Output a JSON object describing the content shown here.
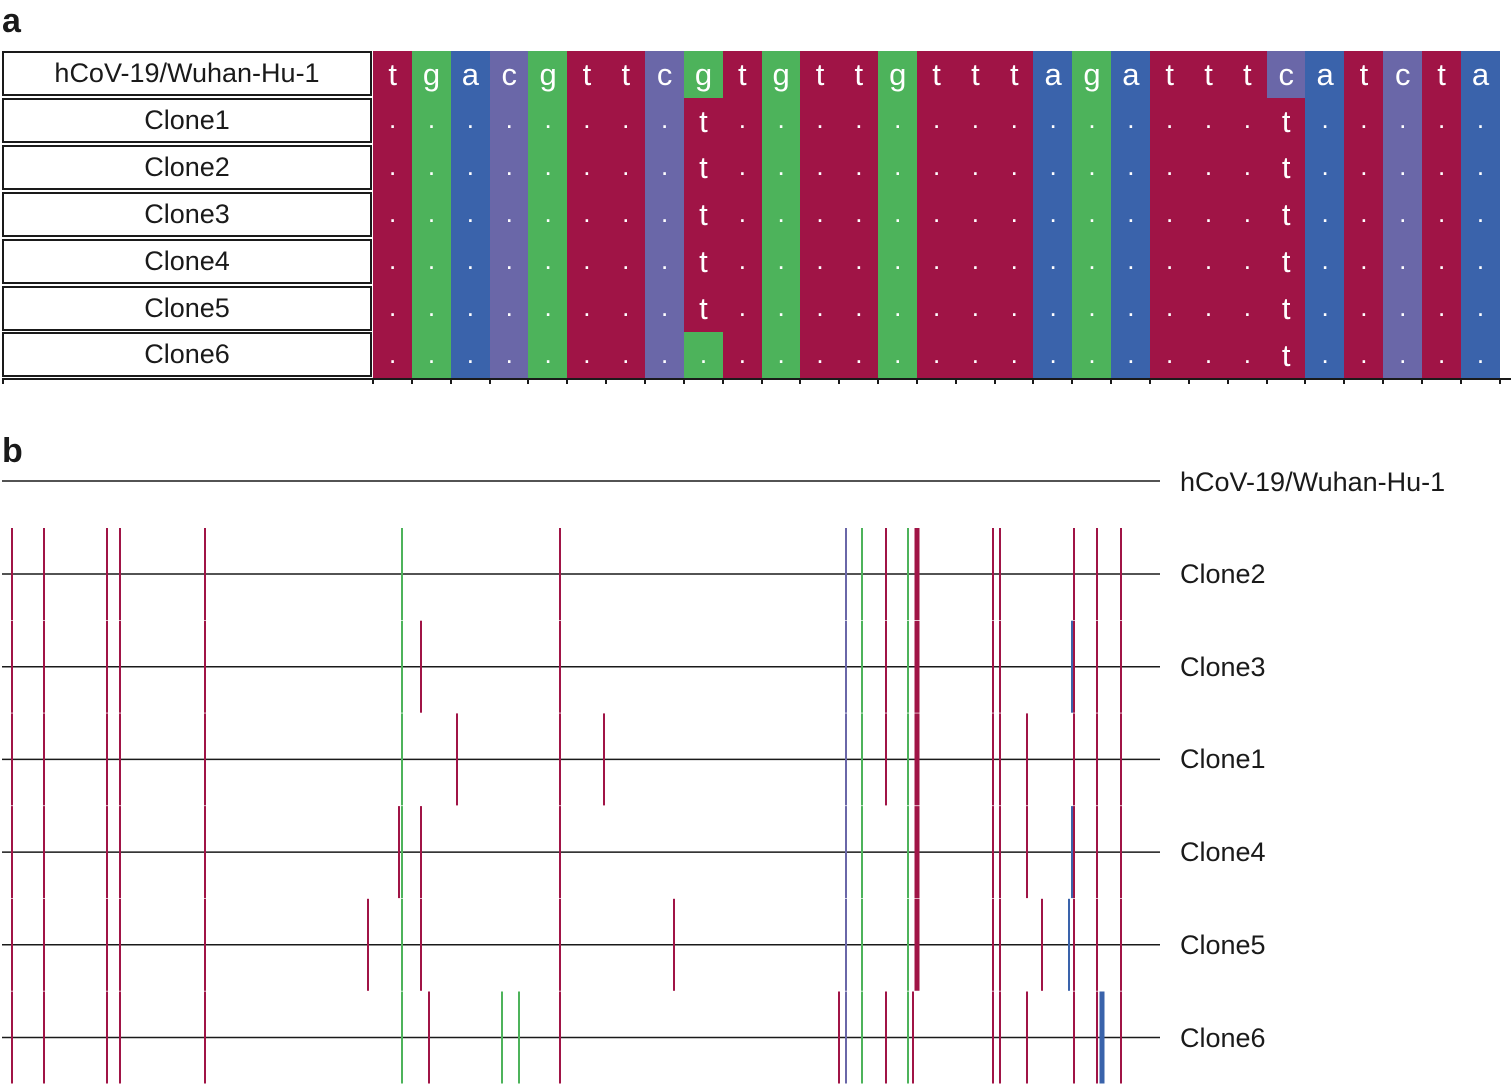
{
  "panel_a": {
    "label": "a",
    "reference": {
      "name": "hCoV-19/Wuhan-Hu-1",
      "sequence": [
        "t",
        "g",
        "a",
        "c",
        "g",
        "t",
        "t",
        "c",
        "g",
        "t",
        "g",
        "t",
        "t",
        "g",
        "t",
        "t",
        "t",
        "a",
        "g",
        "a",
        "t",
        "t",
        "t",
        "c",
        "a",
        "t",
        "c",
        "t",
        "a"
      ]
    },
    "clones": [
      {
        "name": "Clone1",
        "seq": [
          ".",
          ".",
          ".",
          ".",
          ".",
          ".",
          ".",
          ".",
          "t",
          ".",
          ".",
          ".",
          ".",
          ".",
          ".",
          ".",
          ".",
          ".",
          ".",
          ".",
          ".",
          ".",
          ".",
          "t",
          ".",
          ".",
          ".",
          ".",
          "."
        ]
      },
      {
        "name": "Clone2",
        "seq": [
          ".",
          ".",
          ".",
          ".",
          ".",
          ".",
          ".",
          ".",
          "t",
          ".",
          ".",
          ".",
          ".",
          ".",
          ".",
          ".",
          ".",
          ".",
          ".",
          ".",
          ".",
          ".",
          ".",
          "t",
          ".",
          ".",
          ".",
          ".",
          "."
        ]
      },
      {
        "name": "Clone3",
        "seq": [
          ".",
          ".",
          ".",
          ".",
          ".",
          ".",
          ".",
          ".",
          "t",
          ".",
          ".",
          ".",
          ".",
          ".",
          ".",
          ".",
          ".",
          ".",
          ".",
          ".",
          ".",
          ".",
          ".",
          "t",
          ".",
          ".",
          ".",
          ".",
          "."
        ]
      },
      {
        "name": "Clone4",
        "seq": [
          ".",
          ".",
          ".",
          ".",
          ".",
          ".",
          ".",
          ".",
          "t",
          ".",
          ".",
          ".",
          ".",
          ".",
          ".",
          ".",
          ".",
          ".",
          ".",
          ".",
          ".",
          ".",
          ".",
          "t",
          ".",
          ".",
          ".",
          ".",
          "."
        ]
      },
      {
        "name": "Clone5",
        "seq": [
          ".",
          ".",
          ".",
          ".",
          ".",
          ".",
          ".",
          ".",
          "t",
          ".",
          ".",
          ".",
          ".",
          ".",
          ".",
          ".",
          ".",
          ".",
          ".",
          ".",
          ".",
          ".",
          ".",
          "t",
          ".",
          ".",
          ".",
          ".",
          "."
        ]
      },
      {
        "name": "Clone6",
        "seq": [
          ".",
          ".",
          ".",
          ".",
          ".",
          ".",
          ".",
          ".",
          ".",
          ".",
          ".",
          ".",
          ".",
          ".",
          ".",
          ".",
          ".",
          ".",
          ".",
          ".",
          ".",
          ".",
          ".",
          "t",
          ".",
          ".",
          ".",
          ".",
          "."
        ]
      }
    ],
    "colors": {
      "t": "#a01446",
      "g": "#4db35b",
      "a": "#3a63ab",
      "c": "#6a67a8"
    }
  },
  "panel_b": {
    "label": "b",
    "reference_name": "hCoV-19/Wuhan-Hu-1",
    "tracks": [
      {
        "name": "Clone2",
        "marks": [
          {
            "pos": 12,
            "base": "t"
          },
          {
            "pos": 44,
            "base": "t"
          },
          {
            "pos": 107,
            "base": "t"
          },
          {
            "pos": 120,
            "base": "t"
          },
          {
            "pos": 205,
            "base": "t"
          },
          {
            "pos": 402,
            "base": "g"
          },
          {
            "pos": 560,
            "base": "t"
          },
          {
            "pos": 846,
            "base": "c"
          },
          {
            "pos": 862,
            "base": "g"
          },
          {
            "pos": 886,
            "base": "t"
          },
          {
            "pos": 908,
            "base": "g"
          },
          {
            "pos": 917,
            "base": "T"
          },
          {
            "pos": 993,
            "base": "t"
          },
          {
            "pos": 1000,
            "base": "t"
          },
          {
            "pos": 1074,
            "base": "t"
          },
          {
            "pos": 1097,
            "base": "t"
          },
          {
            "pos": 1121,
            "base": "t"
          }
        ]
      },
      {
        "name": "Clone3",
        "marks": [
          {
            "pos": 12,
            "base": "t"
          },
          {
            "pos": 44,
            "base": "t"
          },
          {
            "pos": 107,
            "base": "t"
          },
          {
            "pos": 120,
            "base": "t"
          },
          {
            "pos": 205,
            "base": "t"
          },
          {
            "pos": 402,
            "base": "g"
          },
          {
            "pos": 421,
            "base": "t"
          },
          {
            "pos": 560,
            "base": "t"
          },
          {
            "pos": 846,
            "base": "c"
          },
          {
            "pos": 862,
            "base": "g"
          },
          {
            "pos": 886,
            "base": "t"
          },
          {
            "pos": 908,
            "base": "g"
          },
          {
            "pos": 917,
            "base": "T"
          },
          {
            "pos": 993,
            "base": "t"
          },
          {
            "pos": 1000,
            "base": "t"
          },
          {
            "pos": 1072,
            "base": "a"
          },
          {
            "pos": 1074,
            "base": "t"
          },
          {
            "pos": 1097,
            "base": "t"
          },
          {
            "pos": 1121,
            "base": "t"
          }
        ]
      },
      {
        "name": "Clone1",
        "marks": [
          {
            "pos": 12,
            "base": "t"
          },
          {
            "pos": 44,
            "base": "t"
          },
          {
            "pos": 107,
            "base": "t"
          },
          {
            "pos": 120,
            "base": "t"
          },
          {
            "pos": 205,
            "base": "t"
          },
          {
            "pos": 402,
            "base": "g"
          },
          {
            "pos": 457,
            "base": "t"
          },
          {
            "pos": 560,
            "base": "t"
          },
          {
            "pos": 604,
            "base": "t"
          },
          {
            "pos": 846,
            "base": "c"
          },
          {
            "pos": 862,
            "base": "g"
          },
          {
            "pos": 886,
            "base": "t"
          },
          {
            "pos": 908,
            "base": "g"
          },
          {
            "pos": 917,
            "base": "T"
          },
          {
            "pos": 993,
            "base": "t"
          },
          {
            "pos": 1000,
            "base": "t"
          },
          {
            "pos": 1027,
            "base": "t"
          },
          {
            "pos": 1074,
            "base": "t"
          },
          {
            "pos": 1097,
            "base": "t"
          },
          {
            "pos": 1121,
            "base": "t"
          }
        ]
      },
      {
        "name": "Clone4",
        "marks": [
          {
            "pos": 12,
            "base": "t"
          },
          {
            "pos": 44,
            "base": "t"
          },
          {
            "pos": 107,
            "base": "t"
          },
          {
            "pos": 120,
            "base": "t"
          },
          {
            "pos": 205,
            "base": "t"
          },
          {
            "pos": 399,
            "base": "t"
          },
          {
            "pos": 402,
            "base": "g"
          },
          {
            "pos": 421,
            "base": "t"
          },
          {
            "pos": 560,
            "base": "t"
          },
          {
            "pos": 846,
            "base": "c"
          },
          {
            "pos": 862,
            "base": "g"
          },
          {
            "pos": 908,
            "base": "g"
          },
          {
            "pos": 917,
            "base": "T"
          },
          {
            "pos": 993,
            "base": "t"
          },
          {
            "pos": 1000,
            "base": "t"
          },
          {
            "pos": 1027,
            "base": "t"
          },
          {
            "pos": 1072,
            "base": "a"
          },
          {
            "pos": 1074,
            "base": "t"
          },
          {
            "pos": 1097,
            "base": "t"
          },
          {
            "pos": 1121,
            "base": "t"
          }
        ]
      },
      {
        "name": "Clone5",
        "marks": [
          {
            "pos": 12,
            "base": "t"
          },
          {
            "pos": 44,
            "base": "t"
          },
          {
            "pos": 107,
            "base": "t"
          },
          {
            "pos": 120,
            "base": "t"
          },
          {
            "pos": 205,
            "base": "t"
          },
          {
            "pos": 368,
            "base": "t"
          },
          {
            "pos": 402,
            "base": "g"
          },
          {
            "pos": 421,
            "base": "t"
          },
          {
            "pos": 560,
            "base": "t"
          },
          {
            "pos": 674,
            "base": "t"
          },
          {
            "pos": 846,
            "base": "c"
          },
          {
            "pos": 862,
            "base": "g"
          },
          {
            "pos": 908,
            "base": "g"
          },
          {
            "pos": 917,
            "base": "T"
          },
          {
            "pos": 993,
            "base": "t"
          },
          {
            "pos": 1000,
            "base": "t"
          },
          {
            "pos": 1042,
            "base": "t"
          },
          {
            "pos": 1069,
            "base": "a"
          },
          {
            "pos": 1074,
            "base": "t"
          },
          {
            "pos": 1097,
            "base": "t"
          },
          {
            "pos": 1121,
            "base": "t"
          }
        ]
      },
      {
        "name": "Clone6",
        "marks": [
          {
            "pos": 12,
            "base": "t"
          },
          {
            "pos": 44,
            "base": "t"
          },
          {
            "pos": 107,
            "base": "t"
          },
          {
            "pos": 120,
            "base": "t"
          },
          {
            "pos": 205,
            "base": "t"
          },
          {
            "pos": 402,
            "base": "g"
          },
          {
            "pos": 429,
            "base": "t"
          },
          {
            "pos": 502,
            "base": "g"
          },
          {
            "pos": 519,
            "base": "g"
          },
          {
            "pos": 560,
            "base": "t"
          },
          {
            "pos": 839,
            "base": "t"
          },
          {
            "pos": 846,
            "base": "c"
          },
          {
            "pos": 862,
            "base": "g"
          },
          {
            "pos": 886,
            "base": "t"
          },
          {
            "pos": 908,
            "base": "g"
          },
          {
            "pos": 913,
            "base": "t"
          },
          {
            "pos": 993,
            "base": "t"
          },
          {
            "pos": 1000,
            "base": "t"
          },
          {
            "pos": 1027,
            "base": "t"
          },
          {
            "pos": 1074,
            "base": "t"
          },
          {
            "pos": 1097,
            "base": "t"
          },
          {
            "pos": 1102,
            "base": "A"
          },
          {
            "pos": 1121,
            "base": "t"
          }
        ]
      }
    ],
    "colors": {
      "t": "#a01446",
      "T": "#a01446",
      "g": "#4db35b",
      "a": "#3a63ab",
      "A": "#3a63ab",
      "c": "#6a67a8"
    }
  }
}
